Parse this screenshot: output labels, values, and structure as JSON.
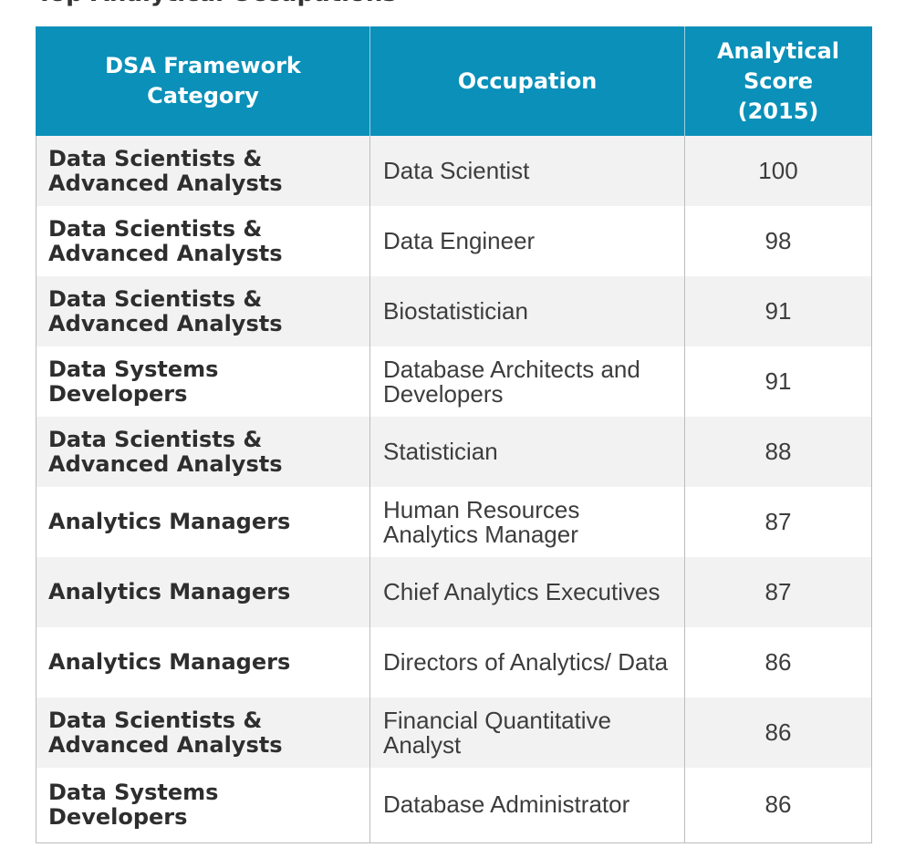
{
  "page": {
    "partial_title": "Top Analytical Occupations"
  },
  "table": {
    "headers": [
      "DSA Framework Category",
      "Occupation",
      "Analytical Score (2015)"
    ],
    "rows": [
      {
        "category": "Data Scientists & Advanced Analysts",
        "occupation": "Data Scientist",
        "score": "100"
      },
      {
        "category": "Data Scientists & Advanced Analysts",
        "occupation": "Data Engineer",
        "score": "98"
      },
      {
        "category": "Data Scientists & Advanced Analysts",
        "occupation": "Biostatistician",
        "score": "91"
      },
      {
        "category": "Data Systems Developers",
        "occupation": "Database Architects and Developers",
        "score": "91"
      },
      {
        "category": "Data Scientists & Advanced Analysts",
        "occupation": "Statistician",
        "score": "88"
      },
      {
        "category": "Analytics Managers",
        "occupation": "Human Resources Analytics Manager",
        "score": "87"
      },
      {
        "category": "Analytics Managers",
        "occupation": "Chief Analytics Executives",
        "score": "87"
      },
      {
        "category": "Analytics Managers",
        "occupation": "Directors of Analytics/ Data",
        "score": "86"
      },
      {
        "category": "Data Scientists & Advanced Analysts",
        "occupation": "Financial Quantitative Analyst",
        "score": "86"
      },
      {
        "category": "Data Systems Developers",
        "occupation": "Database Administrator",
        "score": "86"
      }
    ]
  },
  "colors": {
    "header_bg": "#0a90b9",
    "header_text": "#ffffff",
    "row_alt_bg": "#f2f2f2"
  }
}
